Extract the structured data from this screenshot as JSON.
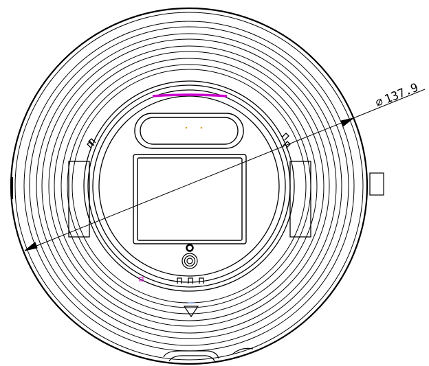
{
  "drawing": {
    "dimension": {
      "symbol": "∅",
      "value": "137.9"
    },
    "colors": {
      "line": "#000000",
      "accent": "#cc00cc",
      "marker": "#e0a000",
      "mark_blue": "#3a6ecc"
    }
  }
}
